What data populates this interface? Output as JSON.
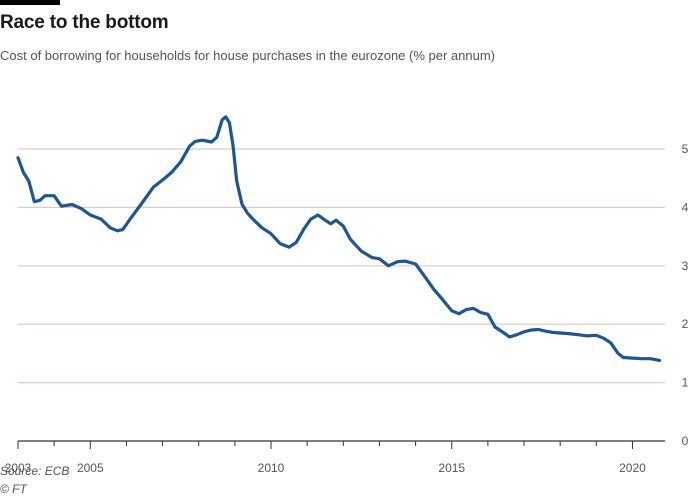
{
  "header": {
    "title": "Race to the bottom",
    "subtitle": "Cost of borrowing for households for house purchases in the eurozone (% per annum)"
  },
  "footer": {
    "source": "Source: ECB",
    "credit": "© FT"
  },
  "colors": {
    "line": "#1f5593",
    "grid": "#d9cec3",
    "axis": "#333333"
  },
  "chart_data": {
    "type": "line",
    "title": "Race to the bottom",
    "subtitle": "Cost of borrowing for households for house purchases in the eurozone (% per annum)",
    "xlabel": "",
    "ylabel": "",
    "xlim": [
      2003.0,
      2020.9
    ],
    "ylim": [
      0,
      5
    ],
    "grid": true,
    "y_axis_side": "right",
    "x_ticks": [
      2003,
      2005,
      2010,
      2015,
      2020
    ],
    "x_minor_ticks": [
      2004,
      2006,
      2007,
      2008,
      2009,
      2011,
      2012,
      2013,
      2014,
      2016,
      2017,
      2018,
      2019
    ],
    "y_ticks": [
      0,
      1,
      2,
      3,
      4,
      5
    ],
    "series": [
      {
        "x": [
          2003.0,
          2003.15,
          2003.3,
          2003.45,
          2003.6,
          2003.75,
          2004.0,
          2004.2,
          2004.5,
          2004.75,
          2005.0,
          2005.3,
          2005.55,
          2005.75,
          2005.9,
          2006.1,
          2006.4,
          2006.75,
          2007.0,
          2007.25,
          2007.5,
          2007.75,
          2007.9,
          2008.1,
          2008.35,
          2008.5,
          2008.65,
          2008.75,
          2008.85,
          2008.95,
          2009.05,
          2009.2,
          2009.35,
          2009.5,
          2009.75,
          2010.0,
          2010.25,
          2010.5,
          2010.7,
          2010.9,
          2011.1,
          2011.3,
          2011.5,
          2011.65,
          2011.8,
          2012.0,
          2012.2,
          2012.5,
          2012.8,
          2013.0,
          2013.25,
          2013.5,
          2013.7,
          2014.0,
          2014.25,
          2014.5,
          2014.75,
          2015.0,
          2015.2,
          2015.4,
          2015.6,
          2015.8,
          2016.0,
          2016.2,
          2016.4,
          2016.6,
          2016.8,
          2017.0,
          2017.2,
          2017.4,
          2017.6,
          2017.8,
          2018.0,
          2018.2,
          2018.5,
          2018.75,
          2019.0,
          2019.2,
          2019.4,
          2019.6,
          2019.75,
          2020.0,
          2020.25,
          2020.5,
          2020.75
        ],
        "y": [
          4.85,
          4.6,
          4.45,
          4.1,
          4.12,
          4.2,
          4.2,
          4.02,
          4.05,
          3.98,
          3.87,
          3.8,
          3.65,
          3.6,
          3.62,
          3.8,
          4.05,
          4.35,
          4.47,
          4.6,
          4.78,
          5.05,
          5.13,
          5.15,
          5.12,
          5.2,
          5.5,
          5.55,
          5.45,
          5.05,
          4.45,
          4.05,
          3.9,
          3.8,
          3.65,
          3.55,
          3.38,
          3.32,
          3.4,
          3.62,
          3.8,
          3.87,
          3.78,
          3.72,
          3.78,
          3.68,
          3.45,
          3.25,
          3.14,
          3.12,
          3.0,
          3.07,
          3.08,
          3.03,
          2.82,
          2.6,
          2.42,
          2.23,
          2.18,
          2.25,
          2.27,
          2.2,
          2.17,
          1.95,
          1.87,
          1.78,
          1.82,
          1.87,
          1.9,
          1.91,
          1.88,
          1.86,
          1.85,
          1.84,
          1.82,
          1.8,
          1.81,
          1.76,
          1.68,
          1.5,
          1.43,
          1.42,
          1.41,
          1.41,
          1.38
        ]
      }
    ]
  }
}
